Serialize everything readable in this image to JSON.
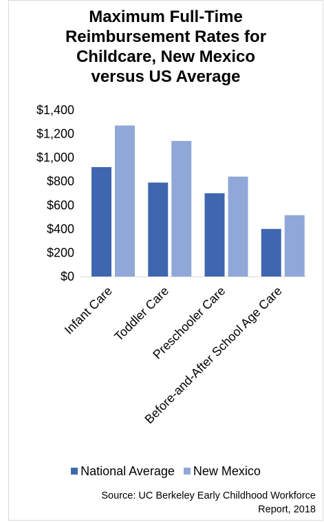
{
  "chart_data": {
    "type": "bar",
    "title_lines": [
      "Maximum Full-Time",
      "Reimbursement Rates for",
      "Childcare, New Mexico",
      "versus US Average"
    ],
    "categories": [
      "Infant Care",
      "Toddler Care",
      "Preschooler Care",
      "Before-and-After School Age Care"
    ],
    "series": [
      {
        "name": "National Average",
        "color": "#3f67b0",
        "values": [
          920,
          790,
          700,
          400
        ]
      },
      {
        "name": "New Mexico",
        "color": "#8fa8d8",
        "values": [
          1270,
          1140,
          840,
          515
        ]
      }
    ],
    "y_ticks": [
      "$0",
      "$200",
      "$400",
      "$600",
      "$800",
      "$1,000",
      "$1,200",
      "$1,400"
    ],
    "ylim": [
      0,
      1400
    ],
    "grid": false,
    "legend_position": "bottom",
    "source_lines": [
      "Source: UC Berkeley Early Childhood Workforce",
      "Report, 2018"
    ]
  }
}
